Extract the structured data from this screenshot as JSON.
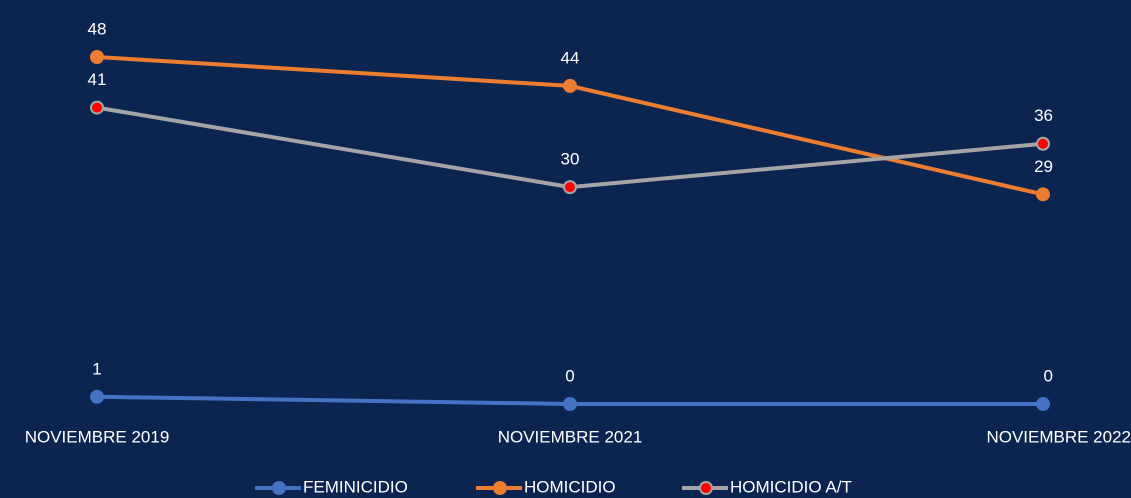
{
  "chart_data": {
    "type": "line",
    "categories": [
      "NOVIEMBRE 2019",
      "NOVIEMBRE 2021",
      "NOVIEMBRE 2022"
    ],
    "series": [
      {
        "name": "FEMINICIDIO",
        "color": "#4472c4",
        "marker_color": "#4472c4",
        "values": [
          1,
          0,
          0
        ]
      },
      {
        "name": "HOMICIDIO",
        "color": "#ed7d31",
        "marker_color": "#ed7d31",
        "values": [
          48,
          44,
          29
        ]
      },
      {
        "name": "HOMICIDIO A/T",
        "color": "#a5a5a5",
        "marker_color": "#ff0000",
        "values": [
          41,
          30,
          36
        ]
      }
    ]
  }
}
